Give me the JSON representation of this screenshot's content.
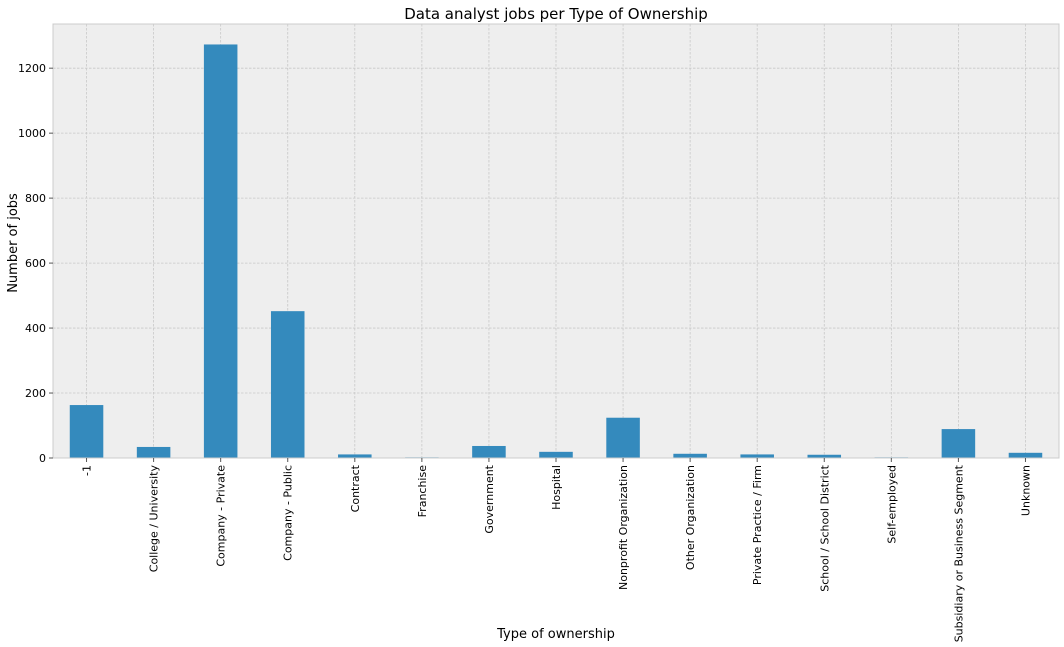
{
  "chart_data": {
    "type": "bar",
    "title": "Data analyst jobs per Type of Ownership",
    "xlabel": "Type of ownership",
    "ylabel": "Number of jobs",
    "categories": [
      "-1",
      "College / University",
      "Company - Private",
      "Company - Public",
      "Contract",
      "Franchise",
      "Government",
      "Hospital",
      "Nonprofit Organization",
      "Other Organization",
      "Private Practice / Firm",
      "School / School District",
      "Self-employed",
      "Subsidiary or Business Segment",
      "Unknown"
    ],
    "values": [
      163,
      34,
      1273,
      452,
      11,
      2,
      37,
      19,
      124,
      13,
      11,
      10,
      2,
      89,
      16
    ],
    "yticks": [
      0,
      200,
      400,
      600,
      800,
      1000,
      1200
    ],
    "ylim": [
      0,
      1336
    ],
    "grid": true,
    "legend": "none",
    "colors": {
      "bar": "#348abd",
      "plot_bg": "#eeeeee",
      "grid": "#c8c8c8"
    }
  }
}
